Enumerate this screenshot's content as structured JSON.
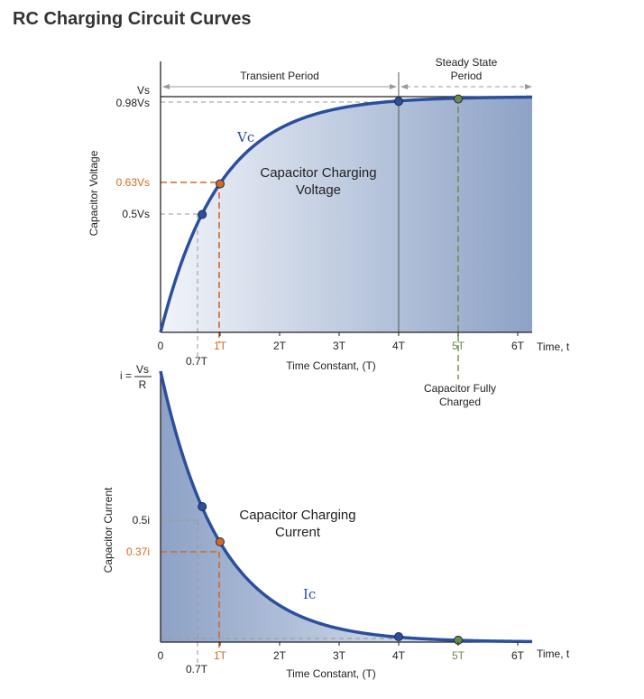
{
  "title": "RC Charging Circuit Curves",
  "colors": {
    "curve": "#2b4f9e",
    "orange": "#d4691f",
    "green": "#6a8a45",
    "grey": "#999999",
    "fill_light": "#f1f4f9",
    "fill_dark": "#8da2c6"
  },
  "chart_data": [
    {
      "type": "line",
      "name_label": "Vc",
      "ylabel": "Capacitor Voltage",
      "xlabel": "Time Constant, (T)",
      "x_axis_end_label": "Time, t",
      "xlim": [
        0,
        6.2
      ],
      "ylim": [
        0,
        1
      ],
      "x_ticks": [
        {
          "v": 0,
          "label": "0",
          "tone": "dark"
        },
        {
          "v": 1,
          "label": "1T",
          "tone": "orange"
        },
        {
          "v": 2,
          "label": "2T",
          "tone": "dark"
        },
        {
          "v": 3,
          "label": "3T",
          "tone": "dark"
        },
        {
          "v": 4,
          "label": "4T",
          "tone": "dark"
        },
        {
          "v": 5,
          "label": "5T",
          "tone": "green"
        },
        {
          "v": 6,
          "label": "6T",
          "tone": "dark"
        }
      ],
      "extra_x_label": {
        "v": 0.7,
        "label": "0.7T"
      },
      "y_labels": [
        {
          "v": 1.0,
          "label": "Vs",
          "tone": "dark"
        },
        {
          "v": 0.98,
          "label": "0.98Vs",
          "tone": "dark"
        },
        {
          "v": 0.63,
          "label": "0.63Vs",
          "tone": "orange"
        },
        {
          "v": 0.5,
          "label": "0.5Vs",
          "tone": "dark"
        }
      ],
      "points": [
        {
          "x": 0.7,
          "y": 0.5,
          "tone": "blue"
        },
        {
          "x": 1,
          "y": 0.63,
          "tone": "orange"
        },
        {
          "x": 4,
          "y": 0.98,
          "tone": "blue"
        },
        {
          "x": 5,
          "y": 0.99,
          "tone": "green"
        }
      ],
      "curve_label_lines": [
        "Capacitor Charging",
        "Voltage"
      ],
      "transient_label": "Transient Period",
      "steady_label_lines": [
        "Steady State",
        "Period"
      ],
      "fully_charged_lines": [
        "Capacitor Fully",
        "Charged"
      ]
    },
    {
      "type": "line",
      "name_label": "Ic",
      "ylabel": "Capacitor Current",
      "xlabel": "Time Constant, (T)",
      "x_axis_end_label": "Time, t",
      "xlim": [
        0,
        6.2
      ],
      "ylim": [
        0,
        1
      ],
      "y_max_label": {
        "prefix": "i =",
        "numerator": "Vs",
        "denominator": "R"
      },
      "x_ticks": [
        {
          "v": 0,
          "label": "0",
          "tone": "dark"
        },
        {
          "v": 1,
          "label": "1T",
          "tone": "orange"
        },
        {
          "v": 2,
          "label": "2T",
          "tone": "dark"
        },
        {
          "v": 3,
          "label": "3T",
          "tone": "dark"
        },
        {
          "v": 4,
          "label": "4T",
          "tone": "dark"
        },
        {
          "v": 5,
          "label": "5T",
          "tone": "green"
        },
        {
          "v": 6,
          "label": "6T",
          "tone": "dark"
        }
      ],
      "extra_x_label": {
        "v": 0.7,
        "label": "0.7T"
      },
      "y_labels": [
        {
          "v": 0.5,
          "label": "0.5i",
          "tone": "dark"
        },
        {
          "v": 0.37,
          "label": "0.37i",
          "tone": "orange"
        }
      ],
      "points": [
        {
          "x": 0.7,
          "y": 0.5,
          "tone": "blue"
        },
        {
          "x": 1,
          "y": 0.37,
          "tone": "orange"
        },
        {
          "x": 4,
          "y": 0.02,
          "tone": "blue"
        },
        {
          "x": 5,
          "y": 0.007,
          "tone": "green"
        }
      ],
      "curve_label_lines": [
        "Capacitor Charging",
        "Current"
      ]
    }
  ]
}
